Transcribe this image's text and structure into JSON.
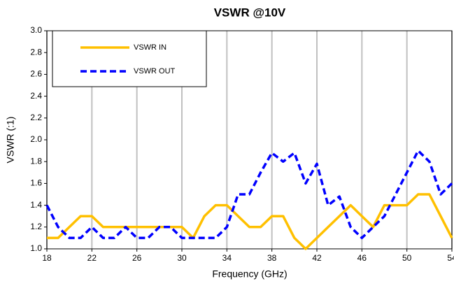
{
  "chart_data": {
    "type": "line",
    "title": "VSWR @10V",
    "x_label": "Frequency (GHz)",
    "y_label": "VSWR (:1)",
    "x": [
      18,
      19,
      20,
      21,
      22,
      23,
      24,
      25,
      26,
      27,
      28,
      29,
      30,
      31,
      32,
      33,
      34,
      35,
      36,
      37,
      38,
      39,
      40,
      41,
      42,
      43,
      44,
      45,
      46,
      47,
      48,
      49,
      50,
      51,
      52,
      53,
      54
    ],
    "series": [
      {
        "name": "VSWR IN",
        "color": "#ffc000",
        "dash": false,
        "values": [
          1.1,
          1.1,
          1.2,
          1.3,
          1.3,
          1.2,
          1.2,
          1.2,
          1.2,
          1.2,
          1.2,
          1.2,
          1.2,
          1.1,
          1.3,
          1.4,
          1.4,
          1.3,
          1.2,
          1.2,
          1.3,
          1.3,
          1.1,
          1.0,
          1.1,
          1.2,
          1.3,
          1.4,
          1.3,
          1.2,
          1.4,
          1.4,
          1.4,
          1.5,
          1.5,
          1.3,
          1.1
        ]
      },
      {
        "name": "VSWR OUT",
        "color": "#0000ff",
        "dash": true,
        "values": [
          1.4,
          1.2,
          1.1,
          1.1,
          1.2,
          1.1,
          1.1,
          1.2,
          1.1,
          1.1,
          1.2,
          1.2,
          1.1,
          1.1,
          1.1,
          1.1,
          1.2,
          1.5,
          1.5,
          1.7,
          1.88,
          1.8,
          1.88,
          1.6,
          1.78,
          1.4,
          1.48,
          1.2,
          1.1,
          1.2,
          1.3,
          1.5,
          1.7,
          1.9,
          1.8,
          1.5,
          1.6
        ]
      }
    ],
    "xlim": [
      18,
      54
    ],
    "xticks": [
      18,
      22,
      26,
      30,
      34,
      38,
      42,
      46,
      50,
      54
    ],
    "ylim": [
      1.0,
      3.0
    ],
    "yticks": [
      {
        "value": 1.0,
        "label": "1.0"
      },
      {
        "value": 1.2,
        "label": "1.2"
      },
      {
        "value": 1.4,
        "label": "1.4"
      },
      {
        "value": 1.6,
        "label": "1.6"
      },
      {
        "value": 1.8,
        "label": "1.8"
      },
      {
        "value": 2.0,
        "label": "2.0"
      },
      {
        "value": 2.2,
        "label": "2.2"
      },
      {
        "value": 2.4,
        "label": "2.4"
      },
      {
        "value": 2.6,
        "label": "2.6"
      },
      {
        "value": 2.8,
        "label": "2.8"
      },
      {
        "value": 3.0,
        "label": "3.0"
      }
    ],
    "grid": "x",
    "legend": "upper left"
  }
}
